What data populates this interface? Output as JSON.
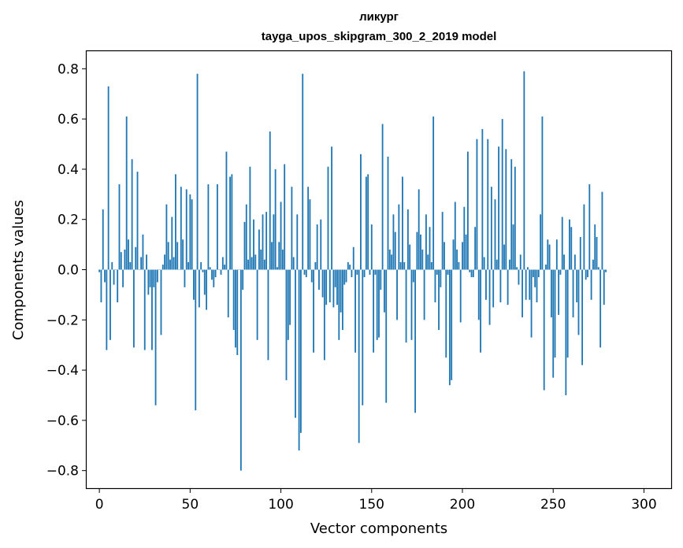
{
  "chart_data": {
    "type": "bar",
    "title": "ликург",
    "subtitle": "tayga_upos_skipgram_300_2_2019 model",
    "xlabel": "Vector components",
    "ylabel": "Components values",
    "xlim": [
      -7,
      315
    ],
    "ylim": [
      -0.87,
      0.87
    ],
    "xticks": [
      0,
      50,
      100,
      150,
      200,
      250,
      300
    ],
    "yticks": [
      -0.8,
      -0.6,
      -0.4,
      -0.2,
      0.0,
      0.2,
      0.4,
      0.6,
      0.8
    ],
    "ytick_labels": [
      "−0.8",
      "−0.6",
      "−0.4",
      "−0.2",
      "0.0",
      "0.2",
      "0.4",
      "0.6",
      "0.8"
    ],
    "bar_color": "#1f77b4",
    "values": [
      -0.01,
      -0.13,
      0.24,
      -0.05,
      -0.32,
      0.73,
      -0.28,
      0.03,
      -0.06,
      0.0,
      -0.13,
      0.34,
      0.07,
      -0.07,
      0.08,
      0.61,
      0.12,
      0.03,
      0.44,
      -0.31,
      0.09,
      0.39,
      0.0,
      0.05,
      0.14,
      -0.32,
      0.06,
      -0.1,
      -0.07,
      -0.32,
      -0.07,
      -0.54,
      -0.05,
      0.0,
      -0.26,
      0.02,
      0.06,
      0.26,
      0.11,
      0.04,
      0.21,
      0.05,
      0.38,
      0.11,
      0.0,
      0.33,
      0.12,
      -0.07,
      0.32,
      0.03,
      0.3,
      0.28,
      -0.12,
      -0.56,
      0.78,
      -0.15,
      0.03,
      -0.01,
      -0.1,
      -0.16,
      0.34,
      0.01,
      -0.04,
      -0.07,
      -0.03,
      0.34,
      0.0,
      -0.02,
      0.05,
      0.02,
      0.47,
      -0.19,
      0.37,
      0.38,
      -0.24,
      -0.31,
      -0.34,
      0.0,
      -0.8,
      -0.08,
      0.19,
      0.26,
      0.04,
      0.41,
      0.05,
      0.2,
      0.06,
      -0.28,
      0.16,
      0.08,
      0.22,
      0.04,
      0.23,
      -0.36,
      0.55,
      0.11,
      0.22,
      0.4,
      0.01,
      0.11,
      0.27,
      0.08,
      0.42,
      -0.44,
      -0.28,
      -0.22,
      0.33,
      0.05,
      -0.59,
      0.22,
      -0.72,
      -0.65,
      0.78,
      -0.02,
      -0.03,
      0.33,
      0.28,
      -0.05,
      -0.33,
      0.03,
      0.18,
      -0.08,
      0.2,
      -0.11,
      -0.36,
      -0.14,
      0.41,
      -0.13,
      0.49,
      -0.15,
      -0.07,
      -0.14,
      -0.28,
      -0.17,
      -0.24,
      -0.06,
      -0.05,
      0.03,
      0.02,
      -0.03,
      0.09,
      -0.33,
      -0.02,
      -0.69,
      0.46,
      -0.54,
      -0.03,
      0.37,
      0.38,
      -0.02,
      0.18,
      -0.33,
      -0.02,
      -0.28,
      -0.27,
      -0.08,
      0.58,
      -0.17,
      -0.53,
      0.45,
      0.08,
      0.06,
      0.22,
      0.15,
      -0.2,
      0.26,
      0.03,
      0.37,
      0.03,
      -0.29,
      0.24,
      0.1,
      -0.28,
      -0.05,
      -0.57,
      0.15,
      0.32,
      0.14,
      0.08,
      -0.2,
      0.22,
      0.06,
      0.17,
      0.03,
      0.61,
      -0.13,
      -0.02,
      -0.24,
      -0.07,
      0.23,
      0.11,
      -0.35,
      -0.02,
      -0.46,
      -0.44,
      0.12,
      0.27,
      0.08,
      0.03,
      -0.21,
      0.11,
      0.25,
      0.14,
      0.47,
      -0.01,
      -0.03,
      -0.03,
      0.17,
      0.52,
      -0.2,
      -0.33,
      0.56,
      0.05,
      -0.12,
      0.52,
      -0.22,
      0.33,
      -0.15,
      0.28,
      0.04,
      0.49,
      -0.13,
      0.6,
      0.1,
      0.48,
      -0.14,
      0.04,
      0.44,
      0.18,
      0.41,
      0.01,
      -0.06,
      0.06,
      -0.19,
      0.79,
      -0.12,
      0.01,
      -0.12,
      -0.27,
      -0.03,
      -0.07,
      -0.13,
      -0.03,
      0.22,
      0.61,
      -0.48,
      0.02,
      0.12,
      0.1,
      -0.19,
      -0.43,
      -0.35,
      0.12,
      -0.18,
      -0.02,
      0.21,
      0.06,
      -0.5,
      -0.35,
      0.2,
      0.17,
      -0.19,
      0.06,
      -0.13,
      -0.26,
      0.13,
      -0.38,
      0.26,
      -0.04,
      -0.03,
      0.34,
      -0.12,
      0.04,
      0.18,
      0.13,
      0.01,
      -0.31,
      0.31,
      -0.14,
      -0.01
    ]
  }
}
